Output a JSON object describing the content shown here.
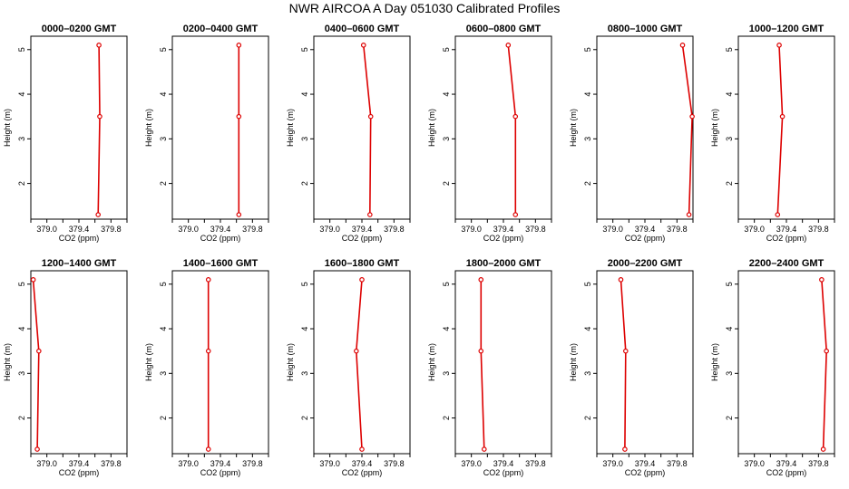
{
  "title": "NWR AIRCOA A  Day 051030  Calibrated Profiles",
  "colors": {
    "series": "#dd0000",
    "axis": "#000000"
  },
  "chart_data": [
    {
      "type": "line",
      "title": "0000–0200 GMT",
      "xlabel": "CO2 (ppm)",
      "ylabel": "Height (m)",
      "xticks": [
        "379.0",
        "379.4",
        "379.8"
      ],
      "yticks": [
        "2",
        "3",
        "4",
        "5"
      ],
      "xlim": [
        378.8,
        380.0
      ],
      "ylim": [
        1.2,
        5.3
      ],
      "series": [
        {
          "x": [
            379.64,
            379.66,
            379.65
          ],
          "y": [
            1.3,
            3.5,
            5.1
          ]
        }
      ]
    },
    {
      "type": "line",
      "title": "0200–0400 GMT",
      "xlabel": "CO2 (ppm)",
      "ylabel": "Height (m)",
      "xticks": [
        "379.0",
        "379.4",
        "379.8"
      ],
      "yticks": [
        "2",
        "3",
        "4",
        "5"
      ],
      "xlim": [
        378.8,
        380.0
      ],
      "ylim": [
        1.2,
        5.3
      ],
      "series": [
        {
          "x": [
            379.63,
            379.63,
            379.63
          ],
          "y": [
            1.3,
            3.5,
            5.1
          ]
        }
      ]
    },
    {
      "type": "line",
      "title": "0400–0600 GMT",
      "xlabel": "CO2 (ppm)",
      "ylabel": "Height (m)",
      "xticks": [
        "379.0",
        "379.4",
        "379.8"
      ],
      "yticks": [
        "2",
        "3",
        "4",
        "5"
      ],
      "xlim": [
        378.8,
        380.0
      ],
      "ylim": [
        1.2,
        5.3
      ],
      "series": [
        {
          "x": [
            379.5,
            379.51,
            379.42
          ],
          "y": [
            1.3,
            3.5,
            5.1
          ]
        }
      ]
    },
    {
      "type": "line",
      "title": "0600–0800 GMT",
      "xlabel": "CO2 (ppm)",
      "ylabel": "Height (m)",
      "xticks": [
        "379.0",
        "379.4",
        "379.8"
      ],
      "yticks": [
        "2",
        "3",
        "4",
        "5"
      ],
      "xlim": [
        378.8,
        380.0
      ],
      "ylim": [
        1.2,
        5.3
      ],
      "series": [
        {
          "x": [
            379.55,
            379.55,
            379.46
          ],
          "y": [
            1.3,
            3.5,
            5.1
          ]
        }
      ]
    },
    {
      "type": "line",
      "title": "0800–1000 GMT",
      "xlabel": "CO2 (ppm)",
      "ylabel": "Height (m)",
      "xticks": [
        "379.0",
        "379.4",
        "379.8"
      ],
      "yticks": [
        "2",
        "3",
        "4",
        "5"
      ],
      "xlim": [
        378.8,
        380.0
      ],
      "ylim": [
        1.2,
        5.3
      ],
      "series": [
        {
          "x": [
            379.95,
            379.99,
            379.87
          ],
          "y": [
            1.3,
            3.5,
            5.1
          ]
        }
      ]
    },
    {
      "type": "line",
      "title": "1000–1200 GMT",
      "xlabel": "CO2 (ppm)",
      "ylabel": "Height (m)",
      "xticks": [
        "379.0",
        "379.4",
        "379.8"
      ],
      "yticks": [
        "2",
        "3",
        "4",
        "5"
      ],
      "xlim": [
        378.8,
        380.0
      ],
      "ylim": [
        1.2,
        5.3
      ],
      "series": [
        {
          "x": [
            379.29,
            379.35,
            379.31
          ],
          "y": [
            1.3,
            3.5,
            5.1
          ]
        }
      ]
    },
    {
      "type": "line",
      "title": "1200–1400 GMT",
      "xlabel": "CO2 (ppm)",
      "ylabel": "Height (m)",
      "xticks": [
        "379.0",
        "379.4",
        "379.8"
      ],
      "yticks": [
        "2",
        "3",
        "4",
        "5"
      ],
      "xlim": [
        378.8,
        380.0
      ],
      "ylim": [
        1.2,
        5.3
      ],
      "series": [
        {
          "x": [
            378.88,
            378.9,
            378.83
          ],
          "y": [
            1.3,
            3.5,
            5.1
          ]
        }
      ]
    },
    {
      "type": "line",
      "title": "1400–1600 GMT",
      "xlabel": "CO2 (ppm)",
      "ylabel": "Height (m)",
      "xticks": [
        "379.0",
        "379.4",
        "379.8"
      ],
      "yticks": [
        "2",
        "3",
        "4",
        "5"
      ],
      "xlim": [
        378.8,
        380.0
      ],
      "ylim": [
        1.2,
        5.3
      ],
      "series": [
        {
          "x": [
            379.25,
            379.25,
            379.25
          ],
          "y": [
            1.3,
            3.5,
            5.1
          ]
        }
      ]
    },
    {
      "type": "line",
      "title": "1600–1800 GMT",
      "xlabel": "CO2 (ppm)",
      "ylabel": "Height (m)",
      "xticks": [
        "379.0",
        "379.4",
        "379.8"
      ],
      "yticks": [
        "2",
        "3",
        "4",
        "5"
      ],
      "xlim": [
        378.8,
        380.0
      ],
      "ylim": [
        1.2,
        5.3
      ],
      "series": [
        {
          "x": [
            379.4,
            379.33,
            379.4
          ],
          "y": [
            1.3,
            3.5,
            5.1
          ]
        }
      ]
    },
    {
      "type": "line",
      "title": "1800–2000 GMT",
      "xlabel": "CO2 (ppm)",
      "ylabel": "Height (m)",
      "xticks": [
        "379.0",
        "379.4",
        "379.8"
      ],
      "yticks": [
        "2",
        "3",
        "4",
        "5"
      ],
      "xlim": [
        378.8,
        380.0
      ],
      "ylim": [
        1.2,
        5.3
      ],
      "series": [
        {
          "x": [
            379.16,
            379.12,
            379.12
          ],
          "y": [
            1.3,
            3.5,
            5.1
          ]
        }
      ]
    },
    {
      "type": "line",
      "title": "2000–2200 GMT",
      "xlabel": "CO2 (ppm)",
      "ylabel": "Height (m)",
      "xticks": [
        "379.0",
        "379.4",
        "379.8"
      ],
      "yticks": [
        "2",
        "3",
        "4",
        "5"
      ],
      "xlim": [
        378.8,
        380.0
      ],
      "ylim": [
        1.2,
        5.3
      ],
      "series": [
        {
          "x": [
            379.15,
            379.16,
            379.1
          ],
          "y": [
            1.3,
            3.5,
            5.1
          ]
        }
      ]
    },
    {
      "type": "line",
      "title": "2200–2400 GMT",
      "xlabel": "CO2 (ppm)",
      "ylabel": "Height (m)",
      "xticks": [
        "379.0",
        "379.4",
        "379.8"
      ],
      "yticks": [
        "2",
        "3",
        "4",
        "5"
      ],
      "xlim": [
        378.8,
        380.0
      ],
      "ylim": [
        1.2,
        5.3
      ],
      "series": [
        {
          "x": [
            379.86,
            379.9,
            379.84
          ],
          "y": [
            1.3,
            3.5,
            5.1
          ]
        }
      ]
    }
  ]
}
